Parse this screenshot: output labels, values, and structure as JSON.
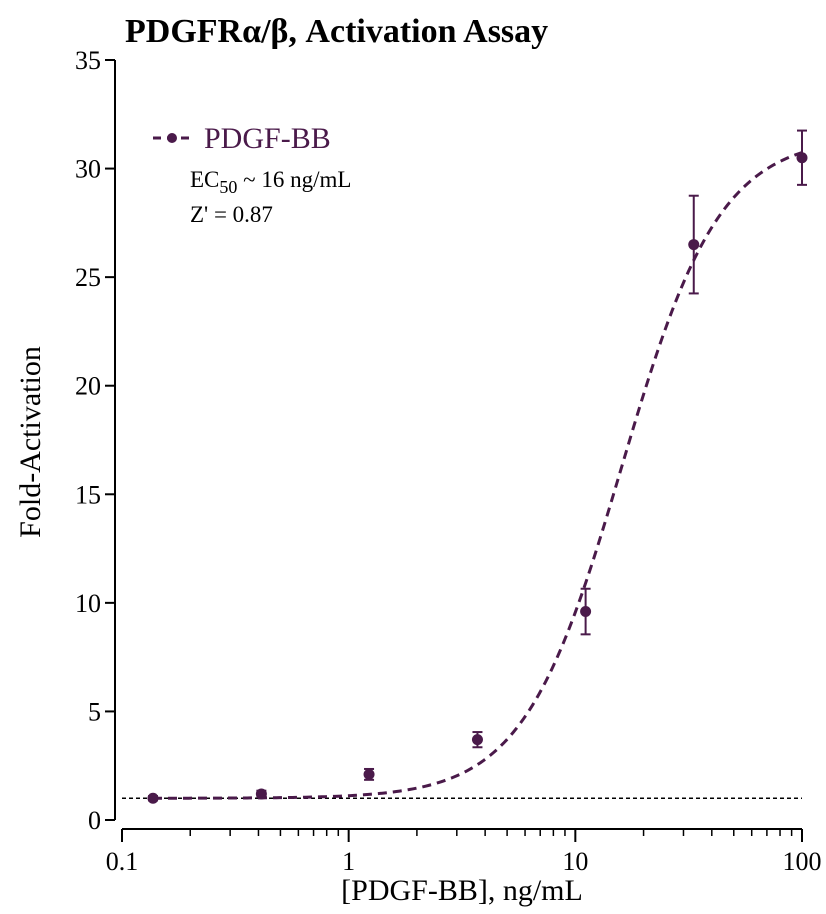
{
  "chart_data": {
    "type": "scatter",
    "title": "PDGFRα/β, Activation Assay",
    "xlabel": "[PDGF-BB], ng/mL",
    "ylabel": "Fold-Activation",
    "x_scale": "log",
    "xlim": [
      0.1,
      100
    ],
    "ylim": [
      0,
      35
    ],
    "x_ticks": [
      {
        "value": 0.1,
        "label": "0.1"
      },
      {
        "value": 1,
        "label": "1"
      },
      {
        "value": 10,
        "label": "10"
      },
      {
        "value": 100,
        "label": "100"
      }
    ],
    "y_ticks": [
      {
        "value": 0,
        "label": "0"
      },
      {
        "value": 5,
        "label": "5"
      },
      {
        "value": 10,
        "label": "10"
      },
      {
        "value": 15,
        "label": "15"
      },
      {
        "value": 20,
        "label": "20"
      },
      {
        "value": 25,
        "label": "25"
      },
      {
        "value": 30,
        "label": "30"
      },
      {
        "value": 35,
        "label": "35"
      }
    ],
    "grid": false,
    "legend_position": "top-left",
    "series": [
      {
        "name": "PDGF-BB",
        "color": "#4a1a4a",
        "x": [
          0.137,
          0.412,
          1.23,
          3.7,
          11.1,
          33.3,
          100
        ],
        "y": [
          1.0,
          1.2,
          2.1,
          3.7,
          9.6,
          26.5,
          30.5
        ],
        "error": [
          0.1,
          0.15,
          0.25,
          0.35,
          1.05,
          2.25,
          1.25
        ],
        "fit": {
          "type": "four-parameter-logistic",
          "bottom": 1.0,
          "top": 31.5,
          "ec50": 16,
          "hill": 2.0,
          "line_style": "dashed"
        }
      }
    ],
    "reference_line": {
      "y": 1.0,
      "line_style": "dotted",
      "color": "#000000"
    },
    "annotations": {
      "ec50_prefix": "EC",
      "ec50_subscript": "50",
      "ec50_suffix": " ~ 16 ng/mL",
      "z_prime": "Z' = 0.87"
    }
  }
}
